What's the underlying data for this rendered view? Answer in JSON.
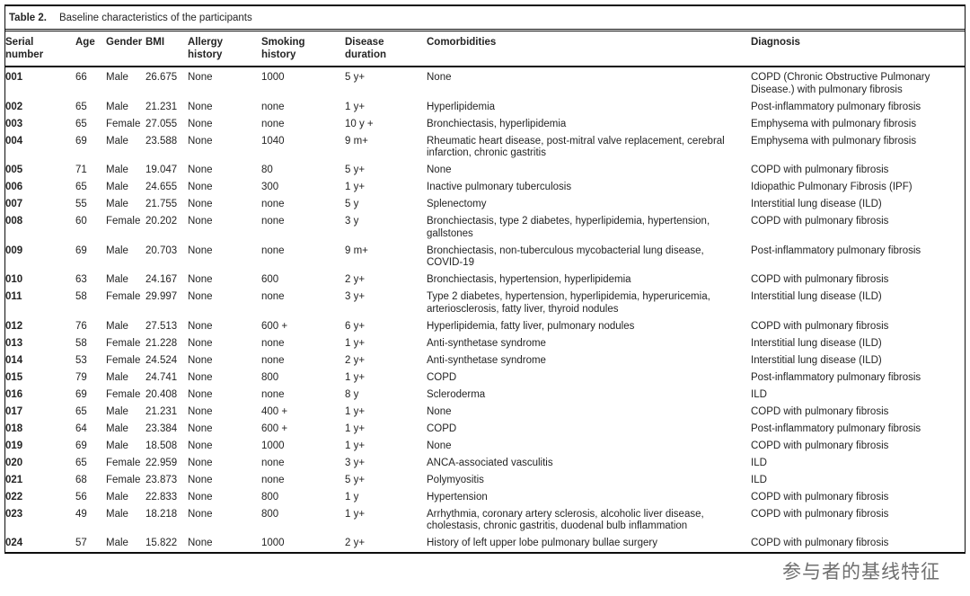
{
  "table": {
    "title_label": "Table 2.",
    "title_text": "Baseline characteristics of the participants",
    "columns": [
      {
        "key": "serial",
        "label": "Serial number"
      },
      {
        "key": "age",
        "label": "Age"
      },
      {
        "key": "gender",
        "label": "Gender"
      },
      {
        "key": "bmi",
        "label": "BMI"
      },
      {
        "key": "allergy",
        "label": "Allergy history"
      },
      {
        "key": "smoking",
        "label": "Smoking history"
      },
      {
        "key": "duration",
        "label": "Disease duration"
      },
      {
        "key": "comorbidities",
        "label": "Comorbidities"
      },
      {
        "key": "diagnosis",
        "label": "Diagnosis"
      }
    ],
    "rows": [
      {
        "serial": "001",
        "age": "66",
        "gender": "Male",
        "bmi": "26.675",
        "allergy": "None",
        "smoking": "1000",
        "duration": "5 y+",
        "comorbidities": "None",
        "diagnosis": "COPD (Chronic Obstructive Pulmonary Disease.) with pulmonary fibrosis"
      },
      {
        "serial": "002",
        "age": "65",
        "gender": "Male",
        "bmi": "21.231",
        "allergy": "None",
        "smoking": "none",
        "duration": "1 y+",
        "comorbidities": "Hyperlipidemia",
        "diagnosis": "Post-inflammatory pulmonary fibrosis"
      },
      {
        "serial": "003",
        "age": "65",
        "gender": "Female",
        "bmi": "27.055",
        "allergy": "None",
        "smoking": "none",
        "duration": "10 y +",
        "comorbidities": "Bronchiectasis, hyperlipidemia",
        "diagnosis": "Emphysema with pulmonary fibrosis"
      },
      {
        "serial": "004",
        "age": "69",
        "gender": "Male",
        "bmi": "23.588",
        "allergy": "None",
        "smoking": "1040",
        "duration": "9 m+",
        "comorbidities": "Rheumatic heart disease, post-mitral valve replacement, cerebral infarction, chronic gastritis",
        "diagnosis": "Emphysema with pulmonary fibrosis"
      },
      {
        "serial": "005",
        "age": "71",
        "gender": "Male",
        "bmi": "19.047",
        "allergy": "None",
        "smoking": "80",
        "duration": "5 y+",
        "comorbidities": "None",
        "diagnosis": "COPD with pulmonary fibrosis"
      },
      {
        "serial": "006",
        "age": "65",
        "gender": "Male",
        "bmi": "24.655",
        "allergy": "None",
        "smoking": "300",
        "duration": "1 y+",
        "comorbidities": "Inactive pulmonary tuberculosis",
        "diagnosis": "Idiopathic Pulmonary Fibrosis (IPF)"
      },
      {
        "serial": "007",
        "age": "55",
        "gender": "Male",
        "bmi": "21.755",
        "allergy": "None",
        "smoking": "none",
        "duration": "5 y",
        "comorbidities": "Splenectomy",
        "diagnosis": "Interstitial lung disease (ILD)"
      },
      {
        "serial": "008",
        "age": "60",
        "gender": "Female",
        "bmi": "20.202",
        "allergy": "None",
        "smoking": "none",
        "duration": "3 y",
        "comorbidities": "Bronchiectasis, type 2 diabetes, hyperlipidemia, hypertension, gallstones",
        "diagnosis": "COPD with pulmonary fibrosis"
      },
      {
        "serial": "009",
        "age": "69",
        "gender": "Male",
        "bmi": "20.703",
        "allergy": "None",
        "smoking": "none",
        "duration": "9 m+",
        "comorbidities": "Bronchiectasis, non-tuberculous mycobacterial lung disease, COVID-19",
        "diagnosis": "Post-inflammatory pulmonary fibrosis"
      },
      {
        "serial": "010",
        "age": "63",
        "gender": "Male",
        "bmi": "24.167",
        "allergy": "None",
        "smoking": "600",
        "duration": "2 y+",
        "comorbidities": "Bronchiectasis, hypertension, hyperlipidemia",
        "diagnosis": "COPD with pulmonary fibrosis"
      },
      {
        "serial": "011",
        "age": "58",
        "gender": "Female",
        "bmi": "29.997",
        "allergy": "None",
        "smoking": "none",
        "duration": "3 y+",
        "comorbidities": "Type 2 diabetes, hypertension, hyperlipidemia, hyperuricemia, arteriosclerosis, fatty liver, thyroid nodules",
        "diagnosis": "Interstitial lung disease (ILD)"
      },
      {
        "serial": "012",
        "age": "76",
        "gender": "Male",
        "bmi": "27.513",
        "allergy": "None",
        "smoking": "600 +",
        "duration": "6 y+",
        "comorbidities": "Hyperlipidemia, fatty liver, pulmonary nodules",
        "diagnosis": "COPD with pulmonary fibrosis"
      },
      {
        "serial": "013",
        "age": "58",
        "gender": "Female",
        "bmi": "21.228",
        "allergy": "None",
        "smoking": "none",
        "duration": "1 y+",
        "comorbidities": "Anti-synthetase syndrome",
        "diagnosis": "Interstitial lung disease (ILD)"
      },
      {
        "serial": "014",
        "age": "53",
        "gender": "Female",
        "bmi": "24.524",
        "allergy": "None",
        "smoking": "none",
        "duration": "2 y+",
        "comorbidities": "Anti-synthetase syndrome",
        "diagnosis": "Interstitial lung disease (ILD)"
      },
      {
        "serial": "015",
        "age": "79",
        "gender": "Male",
        "bmi": "24.741",
        "allergy": "None",
        "smoking": "800",
        "duration": "1 y+",
        "comorbidities": "COPD",
        "diagnosis": "Post-inflammatory pulmonary fibrosis"
      },
      {
        "serial": "016",
        "age": "69",
        "gender": "Female",
        "bmi": "20.408",
        "allergy": "None",
        "smoking": "none",
        "duration": "8 y",
        "comorbidities": "Scleroderma",
        "diagnosis": "ILD"
      },
      {
        "serial": "017",
        "age": "65",
        "gender": "Male",
        "bmi": "21.231",
        "allergy": "None",
        "smoking": "400 +",
        "duration": "1 y+",
        "comorbidities": "None",
        "diagnosis": "COPD with pulmonary fibrosis"
      },
      {
        "serial": "018",
        "age": "64",
        "gender": "Male",
        "bmi": "23.384",
        "allergy": "None",
        "smoking": "600 +",
        "duration": "1 y+",
        "comorbidities": "COPD",
        "diagnosis": "Post-inflammatory pulmonary fibrosis"
      },
      {
        "serial": "019",
        "age": "69",
        "gender": "Male",
        "bmi": "18.508",
        "allergy": "None",
        "smoking": "1000",
        "duration": "1 y+",
        "comorbidities": "None",
        "diagnosis": "COPD with pulmonary fibrosis"
      },
      {
        "serial": "020",
        "age": "65",
        "gender": "Female",
        "bmi": "22.959",
        "allergy": "None",
        "smoking": "none",
        "duration": "3 y+",
        "comorbidities": "ANCA-associated vasculitis",
        "diagnosis": "ILD"
      },
      {
        "serial": "021",
        "age": "68",
        "gender": "Female",
        "bmi": "23.873",
        "allergy": "None",
        "smoking": "none",
        "duration": "5 y+",
        "comorbidities": "Polymyositis",
        "diagnosis": "ILD"
      },
      {
        "serial": "022",
        "age": "56",
        "gender": "Male",
        "bmi": "22.833",
        "allergy": "None",
        "smoking": "800",
        "duration": "1 y",
        "comorbidities": "Hypertension",
        "diagnosis": "COPD with pulmonary fibrosis"
      },
      {
        "serial": "023",
        "age": "49",
        "gender": "Male",
        "bmi": "18.218",
        "allergy": "None",
        "smoking": "800",
        "duration": "1 y+",
        "comorbidities": "Arrhythmia, coronary artery sclerosis, alcoholic liver disease, cholestasis, chronic gastritis, duodenal bulb inflammation",
        "diagnosis": "COPD with pulmonary fibrosis"
      },
      {
        "serial": "024",
        "age": "57",
        "gender": "Male",
        "bmi": "15.822",
        "allergy": "None",
        "smoking": "1000",
        "duration": "2 y+",
        "comorbidities": "History of left upper lobe pulmonary bullae surgery",
        "diagnosis": "COPD with pulmonary fibrosis"
      }
    ]
  },
  "footer": {
    "caption": "参与者的基线特征"
  },
  "colors": {
    "text": "#242424",
    "border": "#0d0d0d",
    "caption": "#6f6f6f",
    "background": "#ffffff"
  }
}
